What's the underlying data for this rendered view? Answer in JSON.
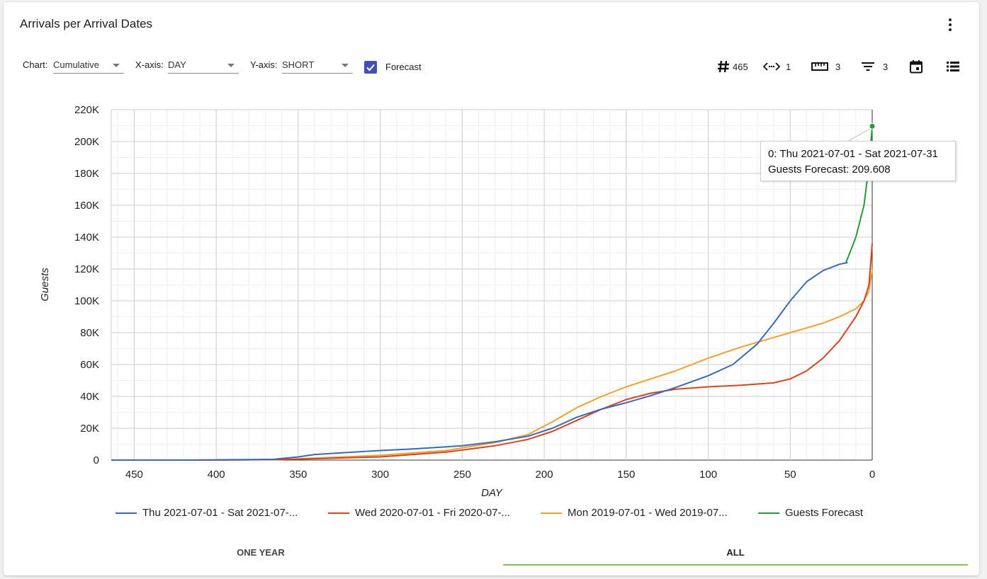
{
  "card": {
    "title": "Arrivals per Arrival Dates"
  },
  "controls": {
    "chart": {
      "label": "Chart:",
      "value": "Cumulative"
    },
    "xaxis": {
      "label": "X-axis:",
      "value": "DAY"
    },
    "yaxis": {
      "label": "Y-axis:",
      "value": "SHORT"
    },
    "forecast": {
      "label": "Forecast",
      "checked": true
    }
  },
  "toolbar": {
    "hash_count": "465",
    "code_count": "1",
    "ruler_count": "3",
    "filter_count": "3"
  },
  "tooltip": {
    "line1": "0: Thu 2021-07-01 - Sat 2021-07-31",
    "line2": "Guests Forecast: 209.608"
  },
  "tabs": [
    {
      "label": "ONE YEAR"
    },
    {
      "label": "ALL"
    }
  ],
  "colors": {
    "blue": "#3a6ab5",
    "red": "#d2451e",
    "orange": "#f2a02d",
    "green": "#2a9a37",
    "accent": "#3f51b5",
    "tab_underline": "#8bc34a"
  },
  "chart_data": {
    "type": "line",
    "xlabel": "DAY",
    "ylabel": "Guests",
    "xlim": [
      464,
      0
    ],
    "ylim": [
      0,
      220000
    ],
    "x_ticks": [
      450,
      400,
      350,
      300,
      250,
      200,
      150,
      100,
      50,
      0
    ],
    "x_tick_labels": [
      "450",
      "400",
      "350",
      "300",
      "250",
      "200",
      "150",
      "100",
      "50",
      "0"
    ],
    "y_ticks": [
      0,
      20000,
      40000,
      60000,
      80000,
      100000,
      120000,
      140000,
      160000,
      180000,
      200000,
      220000
    ],
    "y_tick_labels": [
      "0",
      "20K",
      "40K",
      "60K",
      "80K",
      "100K",
      "120K",
      "140K",
      "160K",
      "180K",
      "200K",
      "220K"
    ],
    "grid": true,
    "legend_position": "bottom",
    "series": [
      {
        "name": "Thu 2021-07-01 - Sat 2021-07-...",
        "color": "#3a6ab5",
        "x": [
          464,
          420,
          380,
          365,
          350,
          340,
          320,
          300,
          280,
          250,
          230,
          210,
          195,
          180,
          165,
          150,
          135,
          120,
          100,
          85,
          70,
          60,
          50,
          40,
          30,
          20,
          15
        ],
        "y": [
          0,
          0,
          300,
          500,
          2000,
          3500,
          4800,
          6000,
          7000,
          9000,
          11500,
          15000,
          20000,
          27000,
          32000,
          36000,
          40500,
          45500,
          53000,
          60000,
          73000,
          86000,
          100000,
          112000,
          119000,
          123000,
          124000
        ]
      },
      {
        "name": "Wed 2020-07-01 - Fri 2020-07-...",
        "color": "#d2451e",
        "x": [
          464,
          400,
          360,
          300,
          260,
          230,
          210,
          195,
          180,
          165,
          150,
          135,
          120,
          100,
          80,
          60,
          50,
          40,
          30,
          20,
          10,
          5,
          2,
          0
        ],
        "y": [
          0,
          0,
          300,
          2000,
          5000,
          9000,
          13000,
          18000,
          25000,
          32000,
          38000,
          42000,
          44500,
          46000,
          47000,
          48500,
          51000,
          56000,
          64000,
          75000,
          90000,
          100000,
          110000,
          136000
        ]
      },
      {
        "name": "Mon 2019-07-01 - Wed 2019-07...",
        "color": "#f2a02d",
        "x": [
          464,
          400,
          360,
          300,
          260,
          230,
          210,
          195,
          180,
          165,
          150,
          135,
          120,
          100,
          80,
          60,
          50,
          40,
          30,
          20,
          10,
          5,
          2,
          0
        ],
        "y": [
          0,
          0,
          300,
          3000,
          6000,
          11000,
          16000,
          24000,
          33000,
          40000,
          46000,
          51000,
          56000,
          64000,
          71000,
          77000,
          80000,
          83000,
          86000,
          90000,
          95000,
          100000,
          106000,
          120000
        ]
      },
      {
        "name": "Guests Forecast",
        "color": "#2a9a37",
        "x": [
          16,
          10,
          5,
          2,
          0
        ],
        "y": [
          124000,
          140000,
          160000,
          185000,
          209608
        ]
      }
    ]
  }
}
